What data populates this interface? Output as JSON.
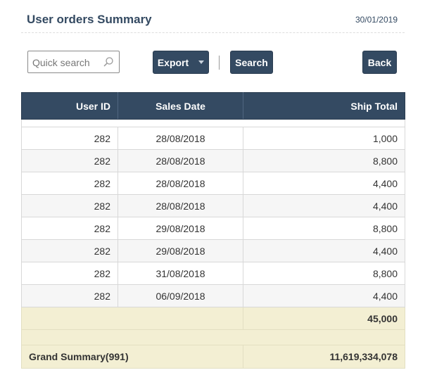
{
  "header": {
    "title": "User orders Summary",
    "date": "30/01/2019"
  },
  "toolbar": {
    "search_placeholder": "Quick search",
    "search_value": "",
    "export_label": "Export",
    "search_label": "Search",
    "back_label": "Back"
  },
  "table": {
    "columns": [
      "User ID",
      "Sales Date",
      "Ship Total"
    ],
    "rows": [
      {
        "user_id": "282",
        "sales_date": "28/08/2018",
        "ship_total": "1,000"
      },
      {
        "user_id": "282",
        "sales_date": "28/08/2018",
        "ship_total": "8,800"
      },
      {
        "user_id": "282",
        "sales_date": "28/08/2018",
        "ship_total": "4,400"
      },
      {
        "user_id": "282",
        "sales_date": "28/08/2018",
        "ship_total": "4,400"
      },
      {
        "user_id": "282",
        "sales_date": "29/08/2018",
        "ship_total": "8,800"
      },
      {
        "user_id": "282",
        "sales_date": "29/08/2018",
        "ship_total": "4,400"
      },
      {
        "user_id": "282",
        "sales_date": "31/08/2018",
        "ship_total": "8,800"
      },
      {
        "user_id": "282",
        "sales_date": "06/09/2018",
        "ship_total": "4,400"
      }
    ],
    "subtotal": "45,000",
    "grand_label": "Grand Summary(991)",
    "grand_total": "11,619,334,078"
  },
  "colors": {
    "header_bg": "#344a62",
    "summary_bg": "#f3efd3"
  }
}
